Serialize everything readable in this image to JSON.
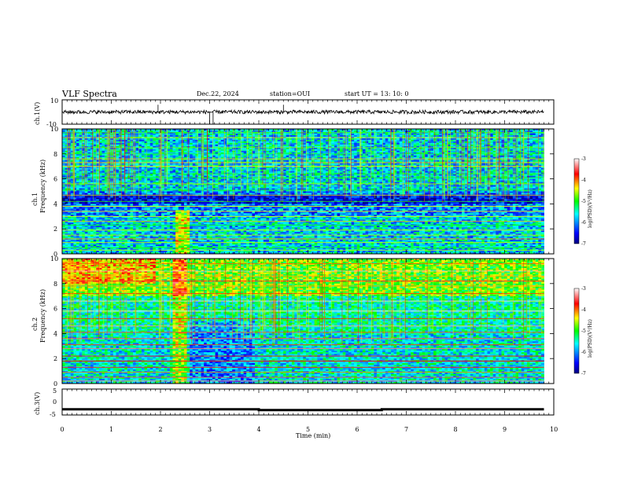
{
  "header": {
    "title": "VLF Spectra",
    "date": "Dec.22, 2024",
    "station": "station=OUI",
    "start": "start  UT  =   13: 10: 0"
  },
  "chart_data": [
    {
      "type": "line",
      "panel": "ch1-waveform",
      "ylabel": "ch.1(V)",
      "ylim": [
        -10,
        10
      ],
      "yticks": [
        "10",
        "-10"
      ],
      "xlim": [
        0,
        10
      ],
      "description_values": {
        "baseline_V": 0,
        "noise_amplitude_V": 1.5,
        "spikes_min": [
          1.95,
          3.0,
          3.07,
          4.5
        ]
      }
    },
    {
      "type": "heatmap",
      "panel": "ch1-spectrogram",
      "ylabel_top": "ch.1",
      "ylabel": "Frequency (kHz)",
      "ylim": [
        0,
        10
      ],
      "yticks": [
        "0",
        "2",
        "4",
        "6",
        "8",
        "10"
      ],
      "xlim": [
        0,
        10
      ],
      "data_end_min": 9.8,
      "colorbar": {
        "label": "log(PSD)(V²/Hz)",
        "ticks": [
          "-3",
          "-4",
          "-5",
          "-6",
          "-7"
        ],
        "range": [
          -7,
          -3
        ]
      }
    },
    {
      "type": "heatmap",
      "panel": "ch2-spectrogram",
      "ylabel_top": "ch.2",
      "ylabel": "Frequency (kHz)",
      "ylim": [
        0,
        10
      ],
      "yticks": [
        "0",
        "2",
        "4",
        "6",
        "8",
        "10"
      ],
      "xlim": [
        0,
        10
      ],
      "data_end_min": 9.8,
      "colorbar": {
        "label": "log(PSD)(V²/Hz)",
        "ticks": [
          "-3",
          "-4",
          "-5",
          "-6",
          "-7"
        ],
        "range": [
          -7,
          -3
        ]
      }
    },
    {
      "type": "line",
      "panel": "ch3-waveform",
      "ylabel": "ch.3(V)",
      "ylim": [
        -5,
        5
      ],
      "yticks": [
        "5",
        "0",
        "-5"
      ],
      "xlim": [
        0,
        10
      ],
      "x": [
        0,
        4.0,
        4.0,
        6.5,
        6.5,
        9.8
      ],
      "y": [
        -2.8,
        -2.8,
        -3.1,
        -3.1,
        -2.8,
        -2.8
      ],
      "xlabel": "Time (min)",
      "xticks": [
        "0",
        "1",
        "2",
        "3",
        "4",
        "5",
        "6",
        "7",
        "8",
        "9",
        "10"
      ]
    }
  ],
  "colors": {
    "axis": "#000000",
    "background": "#ffffff"
  }
}
